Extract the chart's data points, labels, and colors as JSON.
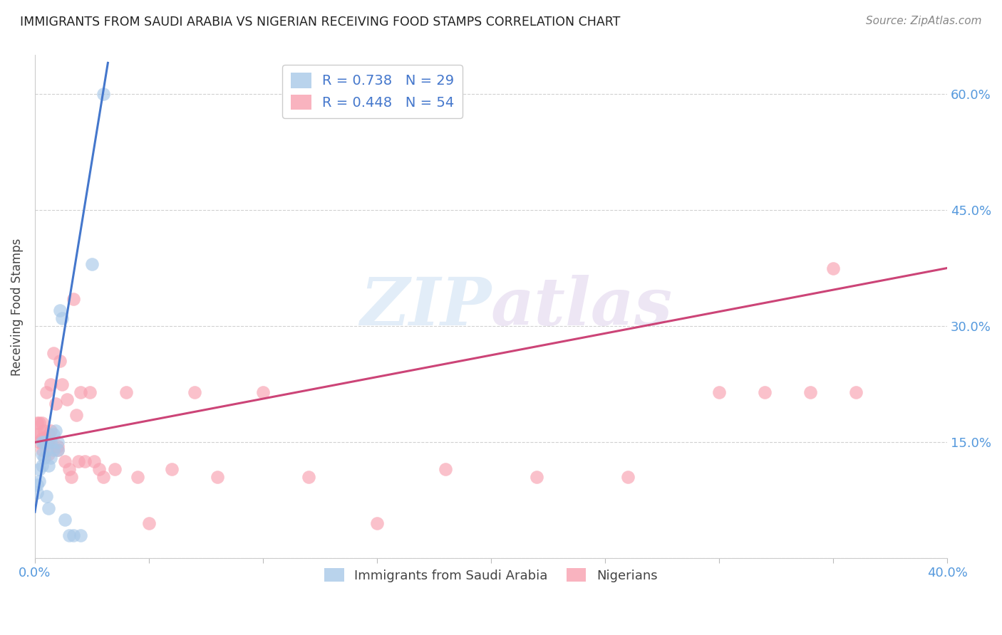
{
  "title": "IMMIGRANTS FROM SAUDI ARABIA VS NIGERIAN RECEIVING FOOD STAMPS CORRELATION CHART",
  "source": "Source: ZipAtlas.com",
  "xlabel_blue": "Immigrants from Saudi Arabia",
  "xlabel_pink": "Nigerians",
  "ylabel": "Receiving Food Stamps",
  "blue_R": 0.738,
  "blue_N": 29,
  "pink_R": 0.448,
  "pink_N": 54,
  "blue_color": "#a8c8e8",
  "pink_color": "#f8a0b0",
  "blue_line_color": "#4477cc",
  "pink_line_color": "#cc4477",
  "right_axis_color": "#5599dd",
  "watermark_zip": "ZIP",
  "watermark_atlas": "atlas",
  "blue_scatter_x": [
    0.001,
    0.001,
    0.002,
    0.002,
    0.003,
    0.003,
    0.003,
    0.004,
    0.004,
    0.005,
    0.005,
    0.005,
    0.006,
    0.006,
    0.007,
    0.007,
    0.008,
    0.008,
    0.009,
    0.01,
    0.01,
    0.011,
    0.012,
    0.013,
    0.015,
    0.017,
    0.02,
    0.025,
    0.03
  ],
  "blue_scatter_y": [
    0.085,
    0.095,
    0.1,
    0.115,
    0.12,
    0.135,
    0.15,
    0.13,
    0.15,
    0.14,
    0.08,
    0.15,
    0.12,
    0.065,
    0.15,
    0.13,
    0.14,
    0.16,
    0.165,
    0.15,
    0.14,
    0.32,
    0.31,
    0.05,
    0.03,
    0.03,
    0.03,
    0.38,
    0.6
  ],
  "pink_scatter_x": [
    0.001,
    0.001,
    0.002,
    0.002,
    0.002,
    0.003,
    0.003,
    0.003,
    0.004,
    0.004,
    0.005,
    0.005,
    0.006,
    0.006,
    0.006,
    0.007,
    0.007,
    0.008,
    0.009,
    0.01,
    0.01,
    0.011,
    0.012,
    0.013,
    0.014,
    0.015,
    0.016,
    0.017,
    0.018,
    0.019,
    0.02,
    0.022,
    0.024,
    0.026,
    0.028,
    0.03,
    0.035,
    0.04,
    0.045,
    0.05,
    0.06,
    0.07,
    0.08,
    0.1,
    0.12,
    0.15,
    0.18,
    0.22,
    0.26,
    0.3,
    0.32,
    0.34,
    0.35,
    0.36
  ],
  "pink_scatter_y": [
    0.16,
    0.175,
    0.15,
    0.16,
    0.175,
    0.14,
    0.155,
    0.175,
    0.155,
    0.165,
    0.15,
    0.215,
    0.15,
    0.16,
    0.135,
    0.225,
    0.165,
    0.265,
    0.2,
    0.145,
    0.14,
    0.255,
    0.225,
    0.125,
    0.205,
    0.115,
    0.105,
    0.335,
    0.185,
    0.125,
    0.215,
    0.125,
    0.215,
    0.125,
    0.115,
    0.105,
    0.115,
    0.215,
    0.105,
    0.045,
    0.115,
    0.215,
    0.105,
    0.215,
    0.105,
    0.045,
    0.115,
    0.105,
    0.105,
    0.215,
    0.215,
    0.215,
    0.375,
    0.215
  ],
  "blue_line_x": [
    0.0,
    0.032
  ],
  "blue_line_y": [
    0.06,
    0.64
  ],
  "pink_line_x": [
    0.0,
    0.4
  ],
  "pink_line_y": [
    0.15,
    0.375
  ],
  "xlim": [
    0.0,
    0.4
  ],
  "ylim": [
    0.0,
    0.65
  ],
  "figsize": [
    14.06,
    8.92
  ],
  "dpi": 100
}
